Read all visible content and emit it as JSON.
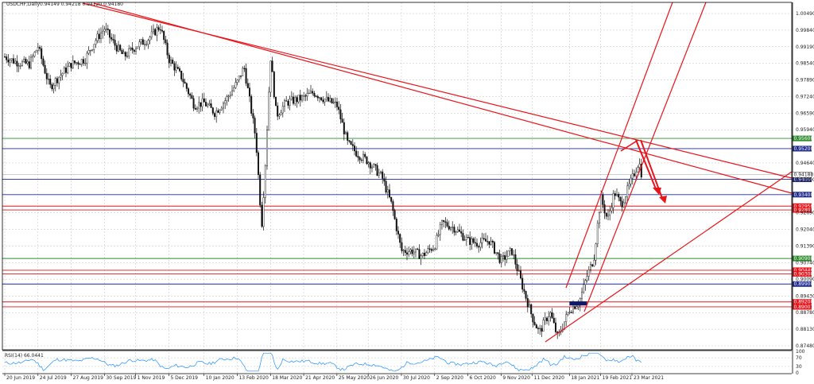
{
  "header": {
    "title": "USDCHF,Daily",
    "ohlc": "0.94149 0.94218 0.94120 0.94180"
  },
  "rsi": {
    "label": "RSI(14) 66.0441",
    "scale_labels": [
      "100",
      "70",
      "30",
      "0"
    ]
  },
  "colors": {
    "candle": "#111111",
    "grid": "#c0c0c0",
    "price_line": "#b0b0b0",
    "rsi_line": "#1e90ff",
    "trendline": "#e8141b",
    "level_red": "#e8141b",
    "level_blue": "#1f2a8c",
    "level_green": "#2e8b2e",
    "tag_dark": "#10186a"
  },
  "chart_data": {
    "type": "candlestick",
    "symbol": "USDCHF",
    "timeframe": "Daily",
    "title": "USDCHF,Daily",
    "x_ticks": [
      "20 Jun 2019",
      "24 Jul 2019",
      "27 Aug 2019",
      "30 Sep 2019",
      "1 Nov 2019",
      "5 Dec 2019",
      "10 Jan 2020",
      "13 Feb 2020",
      "18 Mar 2020",
      "21 Apr 2020",
      "25 May 2020",
      "26 Jun 2020",
      "30 Jul 2020",
      "2 Sep 2020",
      "6 Oct 2020",
      "9 Nov 2020",
      "11 Dec 2020",
      "18 Jan 2021",
      "19 Feb 2021",
      "23 Mar 2021"
    ],
    "y_ticks": [
      "1.00490",
      "0.99840",
      "0.99190",
      "0.98540",
      "0.97890",
      "0.97240",
      "0.96590",
      "0.95940",
      "0.94640",
      "0.93990",
      "0.92690",
      "0.92040",
      "0.91390",
      "0.90740",
      "0.90090",
      "0.89430",
      "0.88780",
      "0.88130",
      "0.87480"
    ],
    "current_price": "0.94180",
    "levels": [
      {
        "price": "0.95600",
        "color": "green"
      },
      {
        "price": "0.95200",
        "color": "blue"
      },
      {
        "price": "0.94000",
        "color": "blue"
      },
      {
        "price": "0.93400",
        "color": "blue"
      },
      {
        "price": "0.92950",
        "color": "red"
      },
      {
        "price": "0.92801",
        "color": "red"
      },
      {
        "price": "0.90900",
        "color": "green"
      },
      {
        "price": "0.90440",
        "color": "red"
      },
      {
        "price": "0.90300",
        "color": "red"
      },
      {
        "price": "0.89900",
        "color": "blue"
      },
      {
        "price": "0.89200",
        "color": "red"
      },
      {
        "price": "0.89007",
        "color": "red"
      }
    ],
    "price_path": [
      [
        "20 Jun 2019",
        0.988
      ],
      [
        "1 Jul 2019",
        0.986
      ],
      [
        "15 Jul 2019",
        0.985
      ],
      [
        "24 Jul 2019",
        0.992
      ],
      [
        "5 Aug 2019",
        0.976
      ],
      [
        "14 Aug 2019",
        0.98
      ],
      [
        "27 Aug 2019",
        0.985
      ],
      [
        "10 Sep 2019",
        0.987
      ],
      [
        "20 Sep 2019",
        0.994
      ],
      [
        "30 Sep 2019",
        0.999
      ],
      [
        "10 Oct 2019",
        0.993
      ],
      [
        "20 Oct 2019",
        0.988
      ],
      [
        "1 Nov 2019",
        0.992
      ],
      [
        "14 Nov 2019",
        0.995
      ],
      [
        "26 Nov 2019",
        1.0
      ],
      [
        "5 Dec 2019",
        0.987
      ],
      [
        "18 Dec 2019",
        0.98
      ],
      [
        "31 Dec 2019",
        0.969
      ],
      [
        "10 Jan 2020",
        0.97
      ],
      [
        "21 Jan 2020",
        0.966
      ],
      [
        "3 Feb 2020",
        0.972
      ],
      [
        "13 Feb 2020",
        0.978
      ],
      [
        "20 Feb 2020",
        0.984
      ],
      [
        "3 Mar 2020",
        0.956
      ],
      [
        "9 Mar 2020",
        0.922
      ],
      [
        "13 Mar 2020",
        0.948
      ],
      [
        "18 Mar 2020",
        0.988
      ],
      [
        "24 Mar 2020",
        0.965
      ],
      [
        "3 Apr 2020",
        0.97
      ],
      [
        "21 Apr 2020",
        0.972
      ],
      [
        "1 May 2020",
        0.974
      ],
      [
        "14 May 2020",
        0.971
      ],
      [
        "25 May 2020",
        0.969
      ],
      [
        "5 Jun 2020",
        0.954
      ],
      [
        "15 Jun 2020",
        0.95
      ],
      [
        "26 Jun 2020",
        0.947
      ],
      [
        "10 Jul 2020",
        0.941
      ],
      [
        "20 Jul 2020",
        0.93
      ],
      [
        "30 Jul 2020",
        0.912
      ],
      [
        "10 Aug 2020",
        0.912
      ],
      [
        "20 Aug 2020",
        0.91
      ],
      [
        "2 Sep 2020",
        0.914
      ],
      [
        "10 Sep 2020",
        0.923
      ],
      [
        "22 Sep 2020",
        0.921
      ],
      [
        "6 Oct 2020",
        0.916
      ],
      [
        "16 Oct 2020",
        0.915
      ],
      [
        "28 Oct 2020",
        0.916
      ],
      [
        "9 Nov 2020",
        0.908
      ],
      [
        "20 Nov 2020",
        0.912
      ],
      [
        "1 Dec 2020",
        0.898
      ],
      [
        "11 Dec 2020",
        0.886
      ],
      [
        "18 Dec 2020",
        0.88
      ],
      [
        "29 Dec 2020",
        0.888
      ],
      [
        "6 Jan 2021",
        0.878
      ],
      [
        "18 Jan 2021",
        0.889
      ],
      [
        "28 Jan 2021",
        0.892
      ],
      [
        "5 Feb 2021",
        0.902
      ],
      [
        "12 Feb 2021",
        0.909
      ],
      [
        "19 Feb 2021",
        0.933
      ],
      [
        "26 Feb 2021",
        0.924
      ],
      [
        "5 Mar 2021",
        0.935
      ],
      [
        "12 Mar 2021",
        0.93
      ],
      [
        "23 Mar 2021",
        0.94
      ],
      [
        "30 Mar 2021",
        0.947
      ],
      [
        "2 Apr 2021",
        0.9418
      ]
    ]
  }
}
